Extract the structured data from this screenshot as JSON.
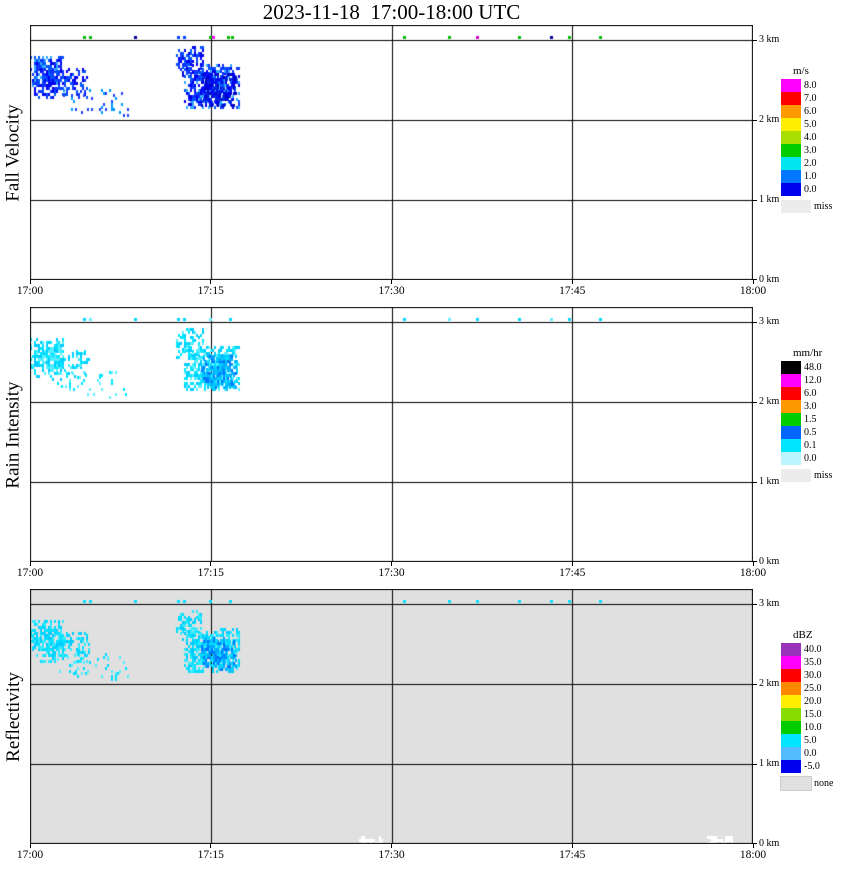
{
  "title": "2023-11-18  17:00-18:00 UTC",
  "chart_data": [
    {
      "id": "fall-velocity",
      "type": "heatmap",
      "ylabel": "Fall Velocity",
      "units": "m/s",
      "x_ticks": [
        {
          "t": 0,
          "label": "17:00"
        },
        {
          "t": 15,
          "label": "17:15"
        },
        {
          "t": 30,
          "label": "17:30"
        },
        {
          "t": 45,
          "label": "17:45"
        },
        {
          "t": 60,
          "label": "18:00"
        }
      ],
      "y_ticks": [
        {
          "h": 3,
          "label": "3 km"
        },
        {
          "h": 2,
          "label": "2 km"
        },
        {
          "h": 1,
          "label": "1 km"
        },
        {
          "h": 0,
          "label": "0 km"
        }
      ],
      "grid_t": [
        15,
        30,
        45
      ],
      "grid_h": [
        1,
        2,
        3
      ],
      "x_range_minutes": [
        0,
        60
      ],
      "y_range_km": [
        0,
        3.1875
      ],
      "background": "#ffffff",
      "legend": {
        "title": "m/s",
        "entries": [
          {
            "label": "8.0",
            "color": "#ff00ff"
          },
          {
            "label": "7.0",
            "color": "#ff0000"
          },
          {
            "label": "6.0",
            "color": "#ff9900"
          },
          {
            "label": "5.0",
            "color": "#ffee00"
          },
          {
            "label": "4.0",
            "color": "#aadd00"
          },
          {
            "label": "3.0",
            "color": "#00cc00"
          },
          {
            "label": "2.0",
            "color": "#00e5ee"
          },
          {
            "label": "1.0",
            "color": "#0077ff"
          },
          {
            "label": "0.0",
            "color": "#0000ee"
          }
        ],
        "missing": {
          "label": "miss",
          "color": "#ececec"
        }
      },
      "echo_clusters": [
        {
          "t0": 0,
          "t1": 2.6,
          "h0": 2.42,
          "h1": 2.78,
          "density": 0.8,
          "value": "0.5-2.0 m/s",
          "colors": [
            "#1133ff",
            "#0055ff",
            "#0000ee",
            "#33aaff"
          ]
        },
        {
          "t0": 0.3,
          "t1": 4.8,
          "h0": 2.28,
          "h1": 2.62,
          "density": 0.5,
          "value": "0.5-2.0 m/s",
          "colors": [
            "#1133ff",
            "#0055ff",
            "#0000ee"
          ]
        },
        {
          "t0": 2.2,
          "t1": 8.0,
          "h0": 2.05,
          "h1": 2.38,
          "density": 0.13,
          "value": "1.0-2.0 m/s",
          "colors": [
            "#2244ff",
            "#0099ff"
          ]
        },
        {
          "t0": 12.1,
          "t1": 14.3,
          "h0": 2.55,
          "h1": 2.9,
          "density": 0.55,
          "value": "0.5-2.0 m/s",
          "colors": [
            "#1133ff",
            "#0055ff",
            "#0000ee"
          ]
        },
        {
          "t0": 12.8,
          "t1": 17.3,
          "h0": 2.15,
          "h1": 2.68,
          "density": 0.85,
          "value": "0.5-2.0 m/s",
          "colors": [
            "#1133ff",
            "#0055ff",
            "#33aaff",
            "#0000ee"
          ]
        },
        {
          "t0": 14.2,
          "t1": 17.0,
          "h0": 2.18,
          "h1": 2.55,
          "density": 0.75,
          "value": "0.0-1.0 m/s",
          "colors": [
            "#0000cc",
            "#0000ff",
            "#0022dd"
          ]
        }
      ],
      "echo_points": [
        {
          "t": 4.5,
          "h": 3.04,
          "value": "3.0",
          "color": "#00bb00"
        },
        {
          "t": 5.0,
          "h": 3.04,
          "value": "3.0",
          "color": "#00bb00"
        },
        {
          "t": 8.7,
          "h": 3.04,
          "value": "0.0",
          "color": "#000099"
        },
        {
          "t": 12.3,
          "h": 3.04,
          "value": "1.0",
          "color": "#0044ff"
        },
        {
          "t": 12.8,
          "h": 3.04,
          "value": "1.0",
          "color": "#0044ff"
        },
        {
          "t": 14.9,
          "h": 3.04,
          "value": "3.0",
          "color": "#00bb00"
        },
        {
          "t": 15.2,
          "h": 3.04,
          "value": "8.0",
          "color": "#ff00ff"
        },
        {
          "t": 16.4,
          "h": 3.04,
          "value": "3.0",
          "color": "#00bb00"
        },
        {
          "t": 16.8,
          "h": 3.04,
          "value": "3.0",
          "color": "#00bb00"
        },
        {
          "t": 31.0,
          "h": 3.04,
          "value": "3.0",
          "color": "#00bb00"
        },
        {
          "t": 34.8,
          "h": 3.04,
          "value": "3.0",
          "color": "#00bb00"
        },
        {
          "t": 37.1,
          "h": 3.04,
          "value": "8.0",
          "color": "#cc00cc"
        },
        {
          "t": 40.6,
          "h": 3.04,
          "value": "3.0",
          "color": "#00bb00"
        },
        {
          "t": 43.2,
          "h": 3.04,
          "value": "0.0",
          "color": "#000099"
        },
        {
          "t": 44.7,
          "h": 3.04,
          "value": "3.0",
          "color": "#00bb00"
        },
        {
          "t": 47.3,
          "h": 3.04,
          "value": "3.0",
          "color": "#00bb00"
        }
      ]
    },
    {
      "id": "rain-intensity",
      "type": "heatmap",
      "ylabel": "Rain Intensity",
      "units": "mm/hr",
      "x_ticks": [
        {
          "t": 0,
          "label": "17:00"
        },
        {
          "t": 15,
          "label": "17:15"
        },
        {
          "t": 30,
          "label": "17:30"
        },
        {
          "t": 45,
          "label": "17:45"
        },
        {
          "t": 60,
          "label": "18:00"
        }
      ],
      "y_ticks": [
        {
          "h": 3,
          "label": "3 km"
        },
        {
          "h": 2,
          "label": "2 km"
        },
        {
          "h": 1,
          "label": "1 km"
        },
        {
          "h": 0,
          "label": "0 km"
        }
      ],
      "grid_t": [
        15,
        30,
        45
      ],
      "grid_h": [
        1,
        2,
        3
      ],
      "x_range_minutes": [
        0,
        60
      ],
      "y_range_km": [
        0,
        3.1875
      ],
      "background": "#ffffff",
      "legend": {
        "title": "mm/hr",
        "entries": [
          {
            "label": "48.0",
            "color": "#000000"
          },
          {
            "label": "12.0",
            "color": "#ff00ff"
          },
          {
            "label": "6.0",
            "color": "#ff0000"
          },
          {
            "label": "3.0",
            "color": "#ff9900"
          },
          {
            "label": "1.5",
            "color": "#00cc00"
          },
          {
            "label": "0.5",
            "color": "#0066ff"
          },
          {
            "label": "0.1",
            "color": "#00e5ff"
          },
          {
            "label": "0.0",
            "color": "#bbf4ff"
          }
        ],
        "missing": {
          "label": "miss",
          "color": "#ececec"
        }
      },
      "echo_clusters": [
        {
          "t0": 0,
          "t1": 2.6,
          "h0": 2.42,
          "h1": 2.78,
          "density": 0.8,
          "value": "0.0-0.1 mm/hr",
          "colors": [
            "#00e5ff",
            "#55eeff",
            "#00ccff"
          ]
        },
        {
          "t0": 0.3,
          "t1": 4.8,
          "h0": 2.28,
          "h1": 2.62,
          "density": 0.5,
          "value": "0.0-0.1 mm/hr",
          "colors": [
            "#00e5ff",
            "#55eeff",
            "#00ccff"
          ]
        },
        {
          "t0": 2.2,
          "t1": 8.0,
          "h0": 2.05,
          "h1": 2.38,
          "density": 0.13,
          "value": "0.0-0.1 mm/hr",
          "colors": [
            "#66eeff",
            "#00e5ff"
          ]
        },
        {
          "t0": 12.1,
          "t1": 14.3,
          "h0": 2.55,
          "h1": 2.9,
          "density": 0.55,
          "value": "0.0-0.1 mm/hr",
          "colors": [
            "#00e5ff",
            "#55eeff",
            "#00ccff"
          ]
        },
        {
          "t0": 12.8,
          "t1": 17.3,
          "h0": 2.15,
          "h1": 2.68,
          "density": 0.85,
          "value": "0.0-0.1 mm/hr",
          "colors": [
            "#00e5ff",
            "#55eeff",
            "#00ccff"
          ]
        },
        {
          "t0": 14.2,
          "t1": 17.0,
          "h0": 2.18,
          "h1": 2.55,
          "density": 0.75,
          "value": "0.1-0.5 mm/hr",
          "colors": [
            "#00aaff",
            "#0077ff",
            "#00ccff"
          ]
        }
      ],
      "echo_points": [
        {
          "t": 4.5,
          "h": 3.04,
          "value": "0.0",
          "color": "#00d5ff"
        },
        {
          "t": 5.0,
          "h": 3.04,
          "value": "0.0",
          "color": "#66eeff"
        },
        {
          "t": 8.7,
          "h": 3.04,
          "value": "0.0",
          "color": "#00d5ff"
        },
        {
          "t": 12.3,
          "h": 3.04,
          "value": "0.0",
          "color": "#00d5ff"
        },
        {
          "t": 12.8,
          "h": 3.04,
          "value": "0.0",
          "color": "#00d5ff"
        },
        {
          "t": 14.9,
          "h": 3.04,
          "value": "0.0",
          "color": "#66eeff"
        },
        {
          "t": 16.6,
          "h": 3.04,
          "value": "0.0",
          "color": "#00d5ff"
        },
        {
          "t": 31.0,
          "h": 3.04,
          "value": "0.0",
          "color": "#00d5ff"
        },
        {
          "t": 34.8,
          "h": 3.04,
          "value": "0.0",
          "color": "#66eeff"
        },
        {
          "t": 37.1,
          "h": 3.04,
          "value": "0.0",
          "color": "#00d5ff"
        },
        {
          "t": 40.6,
          "h": 3.04,
          "value": "0.0",
          "color": "#00d5ff"
        },
        {
          "t": 43.2,
          "h": 3.04,
          "value": "0.0",
          "color": "#66eeff"
        },
        {
          "t": 44.7,
          "h": 3.04,
          "value": "0.0",
          "color": "#00d5ff"
        },
        {
          "t": 47.3,
          "h": 3.04,
          "value": "0.0",
          "color": "#00d5ff"
        }
      ]
    },
    {
      "id": "reflectivity",
      "type": "heatmap",
      "ylabel": "Reflectivity",
      "units": "dBZ",
      "x_ticks": [
        {
          "t": 0,
          "label": "17:00"
        },
        {
          "t": 15,
          "label": "17:15"
        },
        {
          "t": 30,
          "label": "17:30"
        },
        {
          "t": 45,
          "label": "17:45"
        },
        {
          "t": 60,
          "label": "18:00"
        }
      ],
      "y_ticks": [
        {
          "h": 3,
          "label": "3 km"
        },
        {
          "h": 2,
          "label": "2 km"
        },
        {
          "h": 1,
          "label": "1 km"
        },
        {
          "h": 0,
          "label": "0 km"
        }
      ],
      "grid_t": [
        15,
        30,
        45
      ],
      "grid_h": [
        1,
        2,
        3
      ],
      "x_range_minutes": [
        0,
        60
      ],
      "y_range_km": [
        0,
        3.1875
      ],
      "background": "#e0e0e0",
      "legend": {
        "title": "dBZ",
        "entries": [
          {
            "label": "40.0",
            "color": "#9933bb"
          },
          {
            "label": "35.0",
            "color": "#ff00ff"
          },
          {
            "label": "30.0",
            "color": "#ff0000"
          },
          {
            "label": "25.0",
            "color": "#ff8800"
          },
          {
            "label": "20.0",
            "color": "#ffee00"
          },
          {
            "label": "15.0",
            "color": "#88dd00"
          },
          {
            "label": "10.0",
            "color": "#00cc00"
          },
          {
            "label": "5.0",
            "color": "#00e5ff"
          },
          {
            "label": "0.0",
            "color": "#55bbff"
          },
          {
            "label": "-5.0",
            "color": "#0000ee"
          }
        ],
        "missing": {
          "label": "none",
          "color": "#e0e0e0"
        }
      },
      "echo_clusters": [
        {
          "t0": 0,
          "t1": 2.6,
          "h0": 2.42,
          "h1": 2.78,
          "density": 0.8,
          "value": "0-5 dBZ",
          "colors": [
            "#00e0ff",
            "#33eaff",
            "#00ccff"
          ]
        },
        {
          "t0": 0.3,
          "t1": 4.8,
          "h0": 2.28,
          "h1": 2.62,
          "density": 0.5,
          "value": "0-5 dBZ",
          "colors": [
            "#00e0ff",
            "#33eaff",
            "#00ccff"
          ]
        },
        {
          "t0": 2.2,
          "t1": 8.0,
          "h0": 2.05,
          "h1": 2.38,
          "density": 0.13,
          "value": "0-5 dBZ",
          "colors": [
            "#55eeff",
            "#00e0ff"
          ]
        },
        {
          "t0": 12.1,
          "t1": 14.3,
          "h0": 2.55,
          "h1": 2.9,
          "density": 0.55,
          "value": "0-5 dBZ",
          "colors": [
            "#00e0ff",
            "#33eaff",
            "#00ccff"
          ]
        },
        {
          "t0": 12.8,
          "t1": 17.3,
          "h0": 2.15,
          "h1": 2.68,
          "density": 0.85,
          "value": "0-5 dBZ",
          "colors": [
            "#00e0ff",
            "#33eaff",
            "#00ccff"
          ]
        },
        {
          "t0": 14.2,
          "t1": 17.0,
          "h0": 2.18,
          "h1": 2.55,
          "density": 0.75,
          "value": "-5-0 dBZ",
          "colors": [
            "#00aaff",
            "#0077ff",
            "#00ddff"
          ]
        },
        {
          "t0": 27.3,
          "t1": 29.2,
          "h0": 0,
          "h1": 0.07,
          "density": 1,
          "value": "miss",
          "colors": [
            "#ffffff"
          ]
        },
        {
          "t0": 56.2,
          "t1": 58.2,
          "h0": 0,
          "h1": 0.07,
          "density": 1,
          "value": "miss",
          "colors": [
            "#ffffff"
          ]
        }
      ],
      "echo_points": [
        {
          "t": 4.5,
          "h": 3.04,
          "value": "5.0",
          "color": "#00e0ff"
        },
        {
          "t": 5.0,
          "h": 3.04,
          "value": "5.0",
          "color": "#00e0ff"
        },
        {
          "t": 8.7,
          "h": 3.04,
          "value": "5.0",
          "color": "#00e0ff"
        },
        {
          "t": 12.3,
          "h": 3.04,
          "value": "5.0",
          "color": "#00e0ff"
        },
        {
          "t": 12.8,
          "h": 3.04,
          "value": "5.0",
          "color": "#00e0ff"
        },
        {
          "t": 14.9,
          "h": 3.04,
          "value": "5.0",
          "color": "#00e0ff"
        },
        {
          "t": 16.6,
          "h": 3.04,
          "value": "5.0",
          "color": "#00e0ff"
        },
        {
          "t": 31.0,
          "h": 3.04,
          "value": "5.0",
          "color": "#00e0ff"
        },
        {
          "t": 34.8,
          "h": 3.04,
          "value": "5.0",
          "color": "#00e0ff"
        },
        {
          "t": 37.1,
          "h": 3.04,
          "value": "5.0",
          "color": "#00e0ff"
        },
        {
          "t": 40.6,
          "h": 3.04,
          "value": "5.0",
          "color": "#00e0ff"
        },
        {
          "t": 43.2,
          "h": 3.04,
          "value": "5.0",
          "color": "#00e0ff"
        },
        {
          "t": 44.7,
          "h": 3.04,
          "value": "5.0",
          "color": "#00e0ff"
        },
        {
          "t": 47.3,
          "h": 3.04,
          "value": "5.0",
          "color": "#00e0ff"
        }
      ]
    }
  ]
}
